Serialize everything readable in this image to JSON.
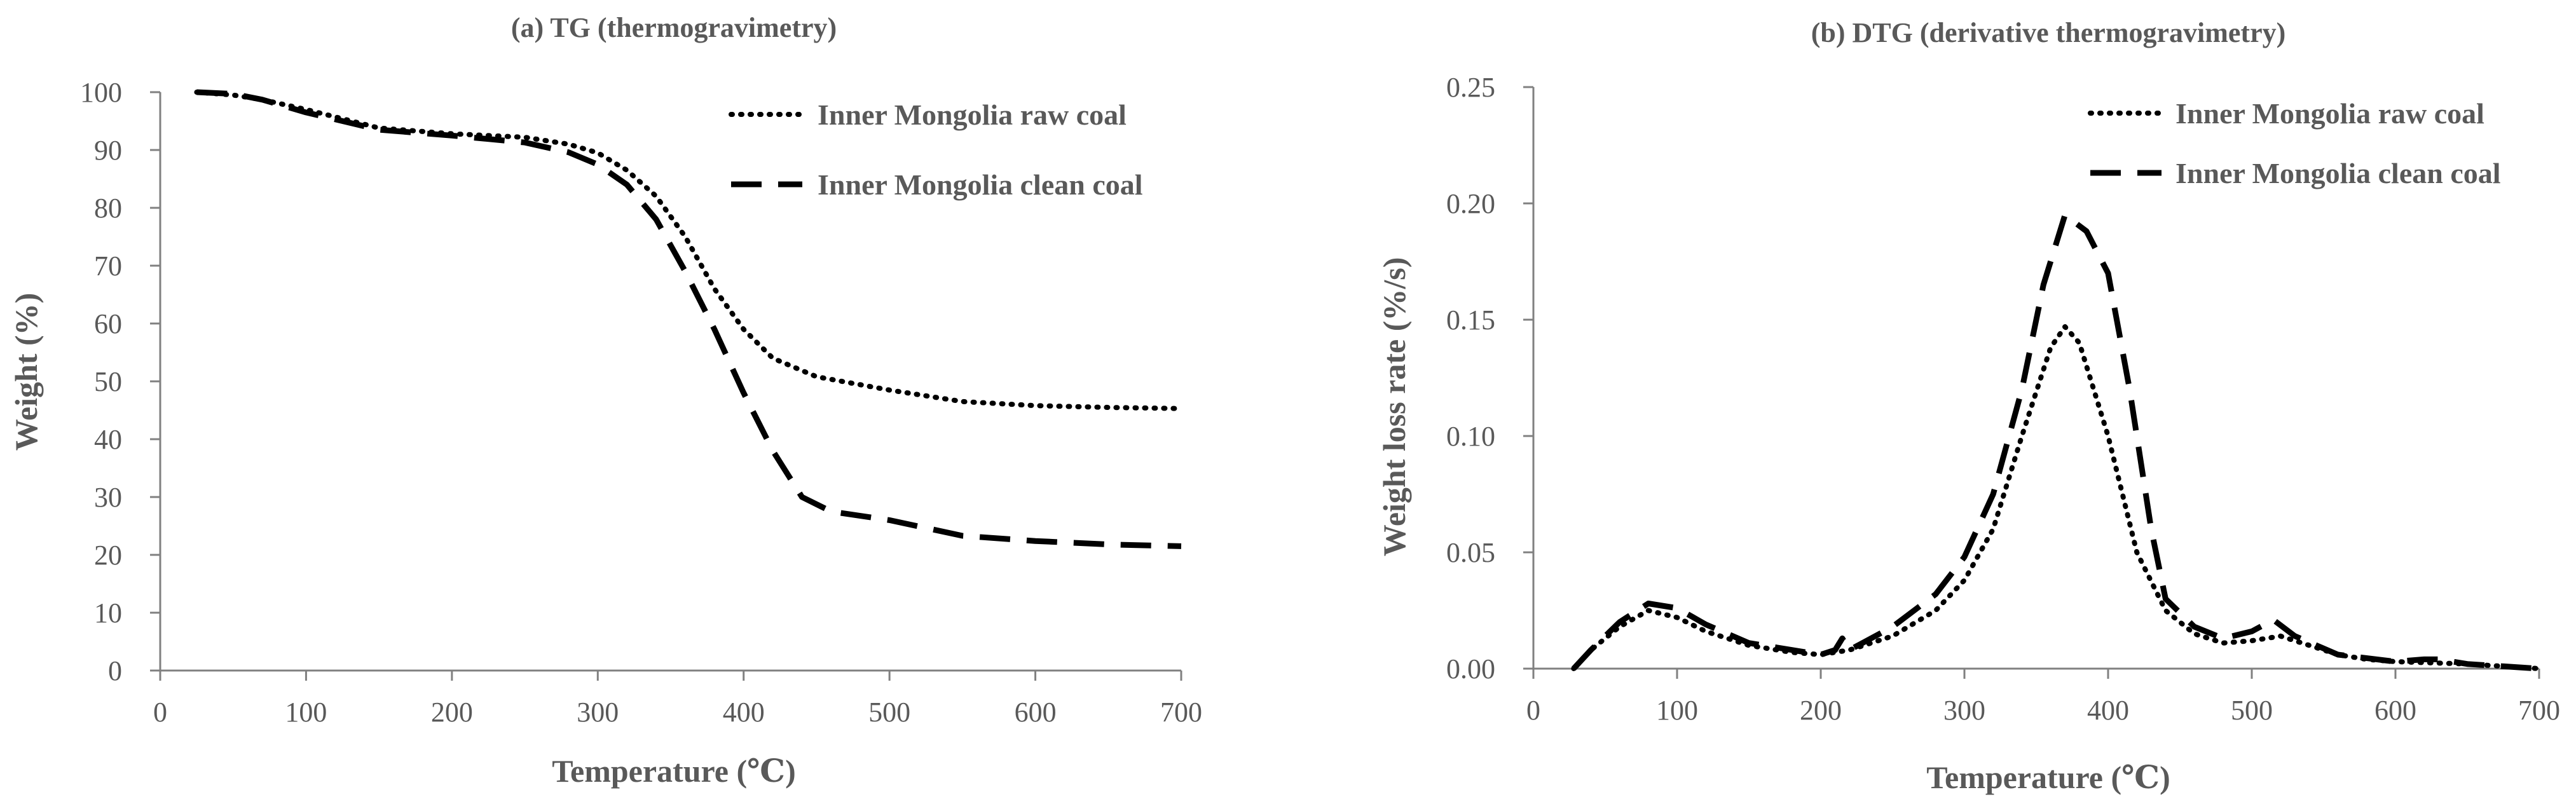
{
  "chart_data": [
    {
      "type": "line",
      "title": "(a) TG (thermogravimetry)",
      "xlabel": "Temperature (℃)",
      "ylabel": "Weight (%)",
      "xlim": [
        0,
        700
      ],
      "ylim": [
        0,
        100
      ],
      "xticks": [
        0,
        100,
        200,
        300,
        400,
        500,
        600,
        700
      ],
      "yticks": [
        0,
        10,
        20,
        30,
        40,
        50,
        60,
        70,
        80,
        90,
        100
      ],
      "xtick_labels": [
        "0",
        "100",
        "200",
        "300",
        "400",
        "500",
        "600",
        "700"
      ],
      "ytick_labels": [
        "0",
        "10",
        "20",
        "30",
        "40",
        "50",
        "60",
        "70",
        "80",
        "90",
        "100"
      ],
      "grid": false,
      "legend": "top-right",
      "series": [
        {
          "name": "Inner Mongolia raw coal",
          "style": "dotted",
          "color": "#000000",
          "x": [
            25,
            50,
            70,
            100,
            150,
            200,
            250,
            280,
            300,
            320,
            340,
            360,
            380,
            400,
            420,
            450,
            500,
            550,
            600,
            650,
            700
          ],
          "y": [
            100,
            99.5,
            98.7,
            97,
            93.8,
            92.8,
            92.2,
            91,
            89.5,
            86.5,
            82,
            75,
            66,
            59,
            54,
            50.8,
            48.5,
            46.5,
            45.8,
            45.5,
            45.3
          ]
        },
        {
          "name": "Inner Mongolia clean coal",
          "style": "dashed",
          "color": "#000000",
          "x": [
            25,
            50,
            70,
            100,
            150,
            200,
            250,
            280,
            300,
            320,
            340,
            360,
            380,
            400,
            420,
            440,
            460,
            500,
            550,
            600,
            650,
            700
          ],
          "y": [
            100,
            99.7,
            98.7,
            96.5,
            93.5,
            92.5,
            91.3,
            89.6,
            87.5,
            84,
            78,
            69,
            59,
            48,
            38,
            30,
            27.5,
            26,
            23.3,
            22.4,
            21.8,
            21.5
          ]
        }
      ]
    },
    {
      "type": "line",
      "title": "(b) DTG (derivative thermogravimetry)",
      "xlabel": "Temperature (℃)",
      "ylabel": "Weight loss rate (%/s)",
      "xlim": [
        0,
        700
      ],
      "ylim": [
        0,
        0.25
      ],
      "xticks": [
        0,
        100,
        200,
        300,
        400,
        500,
        600,
        700
      ],
      "yticks": [
        0,
        0.05,
        0.1,
        0.15,
        0.2,
        0.25
      ],
      "xtick_labels": [
        "0",
        "100",
        "200",
        "300",
        "400",
        "500",
        "600",
        "700"
      ],
      "ytick_labels": [
        "0.00",
        "0.05",
        "0.10",
        "0.15",
        "0.20",
        "0.25"
      ],
      "grid": false,
      "legend": "top-right",
      "series": [
        {
          "name": "Inner Mongolia raw coal",
          "style": "dotted",
          "color": "#000000",
          "x": [
            28,
            40,
            60,
            80,
            100,
            120,
            150,
            180,
            200,
            220,
            250,
            280,
            300,
            320,
            340,
            360,
            370,
            380,
            400,
            420,
            440,
            460,
            480,
            500,
            520,
            540,
            560,
            580,
            600,
            650,
            700
          ],
          "y": [
            0.0,
            0.008,
            0.018,
            0.025,
            0.022,
            0.016,
            0.01,
            0.007,
            0.006,
            0.008,
            0.014,
            0.025,
            0.038,
            0.06,
            0.1,
            0.138,
            0.147,
            0.14,
            0.1,
            0.05,
            0.025,
            0.015,
            0.011,
            0.012,
            0.014,
            0.01,
            0.006,
            0.004,
            0.003,
            0.002,
            0.0
          ]
        },
        {
          "name": "Inner Mongolia clean coal",
          "style": "dashed",
          "color": "#000000",
          "x": [
            28,
            40,
            60,
            80,
            100,
            120,
            150,
            180,
            200,
            210,
            215,
            220,
            250,
            280,
            300,
            320,
            340,
            355,
            370,
            385,
            400,
            415,
            430,
            440,
            460,
            480,
            500,
            515,
            530,
            560,
            600,
            620,
            630,
            650,
            700
          ],
          "y": [
            0.0,
            0.008,
            0.02,
            0.028,
            0.026,
            0.019,
            0.011,
            0.008,
            0.006,
            0.008,
            0.013,
            0.008,
            0.018,
            0.032,
            0.048,
            0.075,
            0.12,
            0.165,
            0.195,
            0.188,
            0.17,
            0.12,
            0.06,
            0.03,
            0.018,
            0.013,
            0.016,
            0.021,
            0.014,
            0.006,
            0.003,
            0.004,
            0.004,
            0.002,
            0.0
          ]
        }
      ]
    }
  ]
}
